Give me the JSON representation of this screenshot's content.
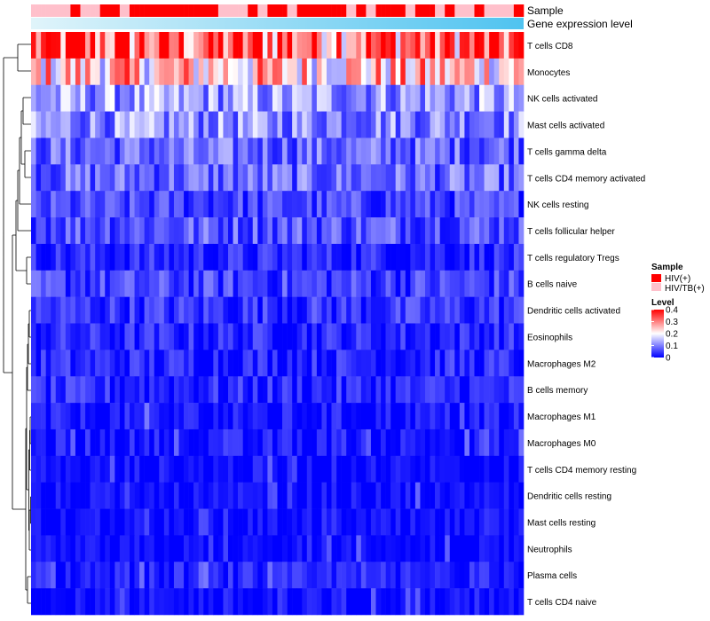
{
  "chart_data": {
    "type": "heatmap",
    "annotation_tracks": [
      {
        "name": "Sample"
      },
      {
        "name": "Gene expression level"
      }
    ],
    "sample_groups": [
      "HIV/TB(+)",
      "HIV/TB(+)",
      "HIV/TB(+)",
      "HIV/TB(+)",
      "HIV/TB(+)",
      "HIV/TB(+)",
      "HIV/TB(+)",
      "HIV/TB(+)",
      "HIV(+)",
      "HIV(+)",
      "HIV/TB(+)",
      "HIV/TB(+)",
      "HIV/TB(+)",
      "HIV/TB(+)",
      "HIV(+)",
      "HIV(+)",
      "HIV(+)",
      "HIV(+)",
      "HIV/TB(+)",
      "HIV/TB(+)",
      "HIV(+)",
      "HIV(+)",
      "HIV(+)",
      "HIV(+)",
      "HIV(+)",
      "HIV(+)",
      "HIV(+)",
      "HIV(+)",
      "HIV(+)",
      "HIV(+)",
      "HIV(+)",
      "HIV(+)",
      "HIV(+)",
      "HIV(+)",
      "HIV(+)",
      "HIV(+)",
      "HIV(+)",
      "HIV(+)",
      "HIV/TB(+)",
      "HIV/TB(+)",
      "HIV/TB(+)",
      "HIV/TB(+)",
      "HIV/TB(+)",
      "HIV/TB(+)",
      "HIV(+)",
      "HIV(+)",
      "HIV/TB(+)",
      "HIV/TB(+)",
      "HIV(+)",
      "HIV(+)",
      "HIV(+)",
      "HIV(+)",
      "HIV/TB(+)",
      "HIV/TB(+)",
      "HIV(+)",
      "HIV(+)",
      "HIV(+)",
      "HIV(+)",
      "HIV(+)",
      "HIV(+)",
      "HIV(+)",
      "HIV(+)",
      "HIV(+)",
      "HIV(+)",
      "HIV/TB(+)",
      "HIV/TB(+)",
      "HIV(+)",
      "HIV(+)",
      "HIV/TB(+)",
      "HIV/TB(+)",
      "HIV(+)",
      "HIV(+)",
      "HIV(+)",
      "HIV(+)",
      "HIV(+)",
      "HIV(+)",
      "HIV/TB(+)",
      "HIV/TB(+)",
      "HIV(+)",
      "HIV(+)",
      "HIV(+)",
      "HIV(+)",
      "HIV/TB(+)",
      "HIV/TB(+)",
      "HIV(+)",
      "HIV(+)",
      "HIV/TB(+)",
      "HIV/TB(+)",
      "HIV/TB(+)",
      "HIV/TB(+)",
      "HIV(+)",
      "HIV(+)",
      "HIV/TB(+)",
      "HIV/TB(+)",
      "HIV/TB(+)",
      "HIV/TB(+)",
      "HIV/TB(+)",
      "HIV/TB(+)",
      "HIV(+)",
      "HIV(+)"
    ],
    "rows": [
      "T cells CD8",
      "Monocytes",
      "NK cells activated",
      "Mast cells activated",
      "T cells gamma delta",
      "T cells CD4 memory activated",
      "NK cells resting",
      "T cells follicular helper",
      "T cells regulatory  Tregs",
      "B cells naive",
      "Dendritic cells activated",
      "Eosinophils",
      "Macrophages M2",
      "B cells memory",
      "Macrophages M1",
      "Macrophages M0",
      "T cells CD4 memory resting",
      "Dendritic cells resting",
      "Mast cells resting",
      "Neutrophils",
      "Plasma cells",
      "T cells CD4 naive"
    ],
    "row_means": [
      0.33,
      0.24,
      0.12,
      0.11,
      0.08,
      0.08,
      0.05,
      0.07,
      0.03,
      0.05,
      0.04,
      0.03,
      0.03,
      0.03,
      0.015,
      0.015,
      0.008,
      0.005,
      0.003,
      0.002,
      0.02,
      0.005
    ],
    "n_columns": 100,
    "value_range": [
      0,
      0.4
    ],
    "color_scale": {
      "low": "#0000FF",
      "mid": "#FFFFFF",
      "high": "#FF0000",
      "mid_value": 0.2
    },
    "legends": {
      "sample": {
        "title": "Sample",
        "entries": [
          {
            "label": "HIV(+)",
            "color": "#FF0000"
          },
          {
            "label": "HIV/TB(+)",
            "color": "#FFC0CB"
          }
        ]
      },
      "level": {
        "title": "Level",
        "ticks": [
          0.4,
          0.3,
          0.2,
          0.1,
          0
        ]
      }
    },
    "gene_expression_gradient": {
      "from": "#E0F4FA",
      "to": "#4FC3F0"
    }
  }
}
